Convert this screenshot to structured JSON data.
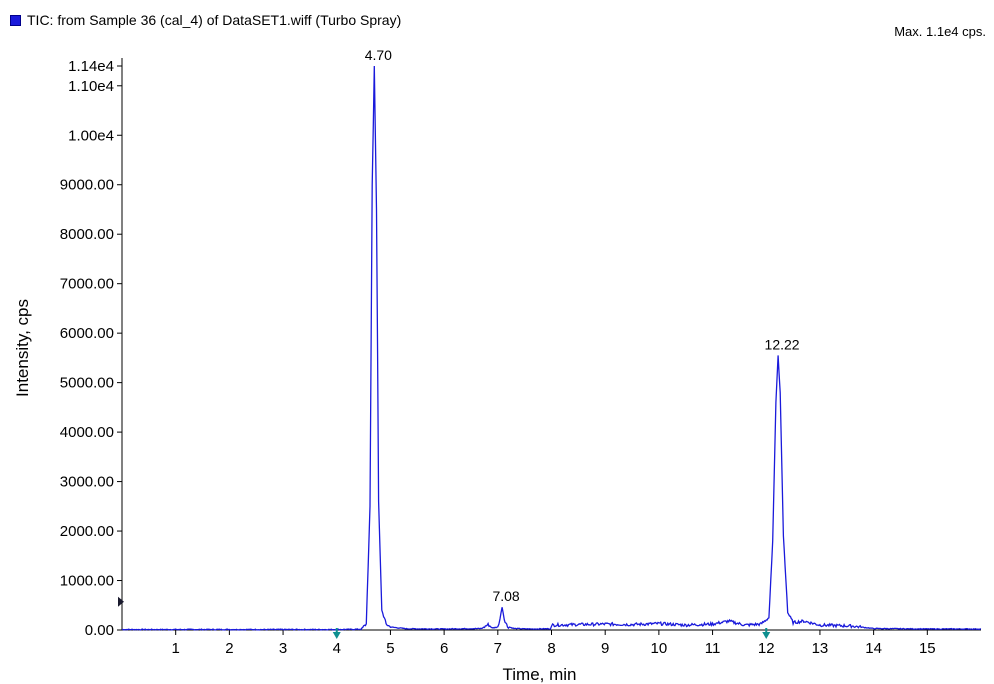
{
  "legend": {
    "label": "TIC: from Sample 36 (cal_4) of DataSET1.wiff (Turbo Spray)",
    "color": "#1a1adb"
  },
  "max_label": "Max. 1.1e4 cps.",
  "chart_data": {
    "type": "line",
    "xlabel": "Time, min",
    "ylabel": "Intensity, cps",
    "xlim": [
      0,
      16
    ],
    "ylim": [
      0,
      11400
    ],
    "x_ticks": [
      1,
      2,
      3,
      4,
      5,
      6,
      7,
      8,
      9,
      10,
      11,
      12,
      13,
      14,
      15
    ],
    "y_ticks": [
      {
        "value": 0,
        "label": "0.00"
      },
      {
        "value": 1000,
        "label": "1000.00"
      },
      {
        "value": 2000,
        "label": "2000.00"
      },
      {
        "value": 3000,
        "label": "3000.00"
      },
      {
        "value": 4000,
        "label": "4000.00"
      },
      {
        "value": 5000,
        "label": "5000.00"
      },
      {
        "value": 6000,
        "label": "6000.00"
      },
      {
        "value": 7000,
        "label": "7000.00"
      },
      {
        "value": 8000,
        "label": "8000.00"
      },
      {
        "value": 9000,
        "label": "9000.00"
      },
      {
        "value": 10000,
        "label": "1.00e4"
      },
      {
        "value": 11000,
        "label": "1.10e4"
      },
      {
        "value": 11400,
        "label": "1.14e4"
      }
    ],
    "line_color": "#1a1adb",
    "series": [
      {
        "x": [
          0,
          1,
          2,
          3,
          4,
          4.45,
          4.55,
          4.62,
          4.66,
          4.7,
          4.74,
          4.78,
          4.84,
          4.92,
          5.0,
          5.3,
          6.0,
          6.7,
          6.82,
          6.9,
          7.0,
          7.04,
          7.08,
          7.12,
          7.18,
          7.3,
          7.6,
          7.98,
          8.02,
          8.5,
          9.0,
          9.5,
          10.0,
          10.5,
          11.0,
          11.3,
          11.6,
          11.9,
          12.05,
          12.12,
          12.18,
          12.22,
          12.26,
          12.32,
          12.4,
          12.5,
          12.7,
          13.0,
          13.6,
          14.0,
          15.0,
          16.0
        ],
        "y": [
          10,
          10,
          10,
          10,
          10,
          15,
          120,
          2500,
          9000,
          11400,
          8500,
          2600,
          400,
          120,
          60,
          25,
          20,
          30,
          110,
          40,
          60,
          230,
          460,
          220,
          70,
          30,
          20,
          25,
          100,
          110,
          120,
          110,
          130,
          100,
          120,
          180,
          100,
          120,
          250,
          1800,
          4600,
          5550,
          4800,
          1900,
          350,
          150,
          180,
          100,
          80,
          30,
          20,
          20
        ]
      }
    ],
    "peaks": [
      {
        "x": 4.7,
        "y": 11400,
        "label": "4.70"
      },
      {
        "x": 7.08,
        "y": 460,
        "label": "7.08"
      },
      {
        "x": 12.22,
        "y": 5550,
        "label": "12.22"
      }
    ],
    "markers": [
      {
        "type": "x-arrow",
        "x": 4.0
      },
      {
        "type": "x-arrow",
        "x": 12.0
      },
      {
        "type": "y-triangle",
        "y": 570
      }
    ]
  }
}
